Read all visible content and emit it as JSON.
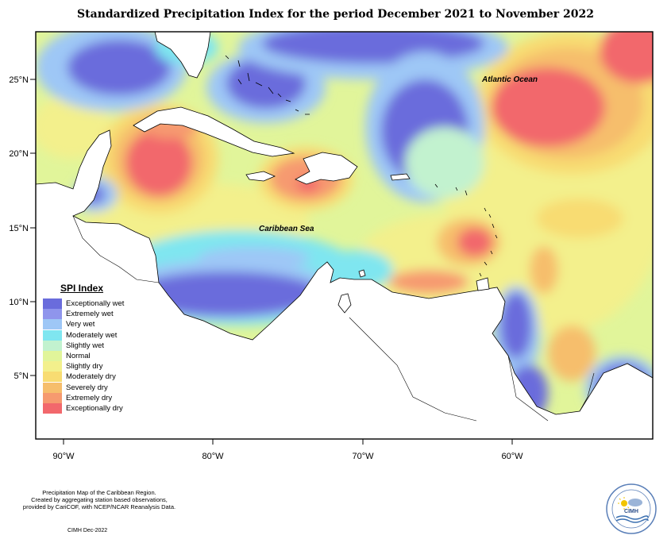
{
  "title": "Standardized Precipitation Index for the period December 2021 to November 2022",
  "axes": {
    "longitude_labels": [
      "90°W",
      "80°W",
      "70°W",
      "60°W"
    ],
    "latitude_labels": [
      "25°N",
      "20°N",
      "15°N",
      "10°N",
      "5°N"
    ]
  },
  "map_labels": {
    "atlantic": "Atlantic Ocean",
    "caribbean": "Caribbean Sea"
  },
  "legend": {
    "title": "SPI Index",
    "items": [
      {
        "label": "Exceptionally wet",
        "color": "#6a6cdc"
      },
      {
        "label": "Extremely wet",
        "color": "#8f95ec"
      },
      {
        "label": "Very wet",
        "color": "#9ec7f6"
      },
      {
        "label": "Moderately wet",
        "color": "#7fe6f0"
      },
      {
        "label": "Slightly wet",
        "color": "#c2f2cf"
      },
      {
        "label": "Normal",
        "color": "#e1f59a"
      },
      {
        "label": "Slightly dry",
        "color": "#f3f08c"
      },
      {
        "label": "Moderately dry",
        "color": "#f8dc72"
      },
      {
        "label": "Severely dry",
        "color": "#f6be6c"
      },
      {
        "label": "Extremely dry",
        "color": "#f69a6f"
      },
      {
        "label": "Exceptionally dry",
        "color": "#f2686c"
      }
    ]
  },
  "footnote": {
    "line1": "Precipitation Map of the Caribbean Region.",
    "line2": "Created by aggregating station based observations,",
    "line3": "provided by CariCOF, with NCEP/NCAR Reanalysis Data."
  },
  "credit": "CIMH Dec-2022",
  "logo": {
    "name": "CIMH",
    "icon": "sun-cloud-icon"
  }
}
